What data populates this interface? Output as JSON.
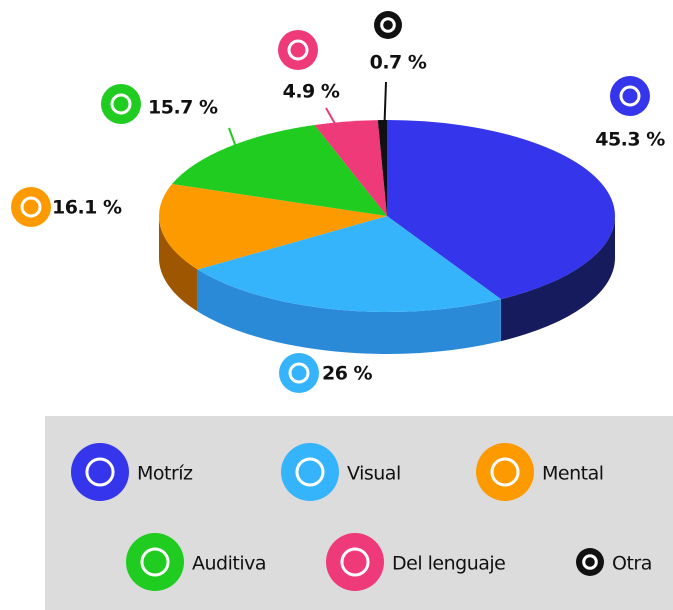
{
  "chart_data": {
    "type": "pie",
    "categories": [
      "Motríz",
      "Visual",
      "Mental",
      "Auditiva",
      "Del lenguaje",
      "Otra"
    ],
    "values": [
      45.3,
      26,
      16.1,
      15.7,
      4.9,
      0.7
    ],
    "value_labels": [
      "45.3 %",
      "26 %",
      "16.1 %",
      "15.7 %",
      "4.9 %",
      "0.7 %"
    ],
    "colors": [
      "#3535ec",
      "#36b4fb",
      "#fd9a00",
      "#1fcc1f",
      "#ee3a78",
      "#111111"
    ],
    "side_colors": [
      "#151b5c",
      "#2a8ad8",
      "#9e5600",
      "#168a16",
      "#a3204f",
      "#000000"
    ]
  }
}
